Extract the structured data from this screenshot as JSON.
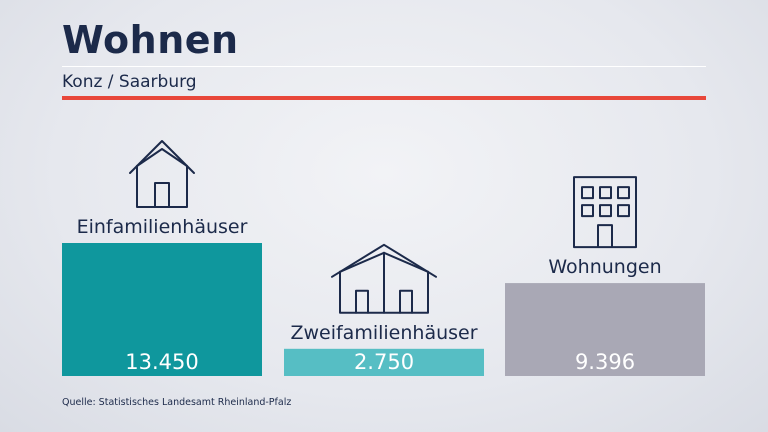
{
  "header": {
    "title": "Wohnen",
    "subtitle": "Konz / Saarburg"
  },
  "source": "Quelle: Statistisches Landesamt Rheinland-Pfalz",
  "colors": {
    "text": "#1c2a4a",
    "accent_red": "#e8473a",
    "bar_einfamilien": "#0f979d",
    "bar_zweifamilien": "#56bec4",
    "bar_wohnungen": "#a9a8b5"
  },
  "chart_data": {
    "type": "bar",
    "categories": [
      "Einfamilienhäuser",
      "Zweifamilienhäuser",
      "Wohnungen"
    ],
    "values": [
      13450,
      2750,
      9396
    ],
    "value_labels": [
      "13.450",
      "2.750",
      "9.396"
    ],
    "icons": [
      "house-icon",
      "double-house-icon",
      "apartment-building-icon"
    ],
    "ylim": [
      0,
      14000
    ],
    "grid": false,
    "legend": "none"
  }
}
